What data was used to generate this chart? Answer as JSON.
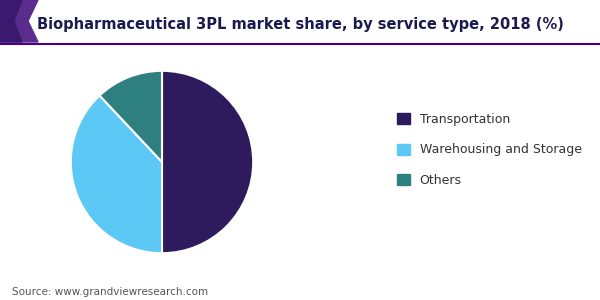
{
  "title": "Biopharmaceutical 3PL market share, by service type, 2018 (%)",
  "labels": [
    "Transportation",
    "Warehousing and Storage",
    "Others"
  ],
  "sizes": [
    50,
    38,
    12
  ],
  "colors": [
    "#2d1b5e",
    "#5bc8f5",
    "#2e7f80"
  ],
  "legend_labels": [
    "Transportation",
    "Warehousing and Storage",
    "Others"
  ],
  "source_text": "Source: www.grandviewresearch.com",
  "background_color": "#ffffff",
  "startangle": 90,
  "title_color": "#1a1a4e",
  "line_color": "#4b0082",
  "chevron_color1": "#5a2d8c",
  "chevron_color2": "#3a1a6e"
}
